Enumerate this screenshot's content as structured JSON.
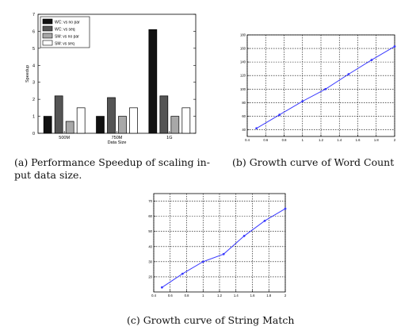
{
  "captions": {
    "a_line1": "(a) Performance Speedup of scaling in-",
    "a_line2": "put data size.",
    "b": "(b) Growth curve of Word Count",
    "c": "(c) Growth curve of String Match"
  },
  "chart_data": [
    {
      "type": "bar",
      "title": "",
      "xlabel": "Data Size",
      "ylabel": "Speedup",
      "categories": [
        "500M",
        "750M",
        "1G"
      ],
      "ylim": [
        0,
        7
      ],
      "yticks": [
        "0",
        "1",
        "2",
        "3",
        "4",
        "5",
        "6",
        "7"
      ],
      "legend_position": "top-left",
      "grid": false,
      "series": [
        {
          "name": "WC: vs no par",
          "color": "#111111",
          "values": [
            1.0,
            1.0,
            6.1
          ]
        },
        {
          "name": "WC: vs seq",
          "color": "#555555",
          "values": [
            2.2,
            2.1,
            2.2
          ]
        },
        {
          "name": "SM: vs no par",
          "color": "#a8a8a8",
          "values": [
            0.7,
            1.0,
            1.0
          ]
        },
        {
          "name": "SM: vs seq",
          "color": "#ffffff",
          "values": [
            1.5,
            1.5,
            1.5
          ]
        }
      ]
    },
    {
      "type": "line",
      "title": "",
      "xlabel": "",
      "ylabel": "",
      "grid": true,
      "line_color": "#3a3aff",
      "xlim": [
        0.4,
        2
      ],
      "ylim": [
        30,
        180
      ],
      "xticks": [
        "0.4",
        "0.6",
        "0.8",
        "1",
        "1.2",
        "1.4",
        "1.6",
        "1.8",
        "2"
      ],
      "yticks": [
        "40",
        "60",
        "80",
        "100",
        "120",
        "140",
        "160",
        "180"
      ],
      "x": [
        0.5,
        0.75,
        1.0,
        1.25,
        1.5,
        1.75,
        2.0
      ],
      "y": [
        42,
        62,
        82,
        100,
        122,
        143,
        163
      ]
    },
    {
      "type": "line",
      "title": "",
      "xlabel": "",
      "ylabel": "",
      "grid": true,
      "line_color": "#3a3aff",
      "xlim": [
        0.4,
        2
      ],
      "ylim": [
        10,
        75
      ],
      "xticks": [
        "0.4",
        "0.6",
        "0.8",
        "1",
        "1.2",
        "1.4",
        "1.6",
        "1.8",
        "2"
      ],
      "yticks": [
        "20",
        "30",
        "40",
        "50",
        "60",
        "70"
      ],
      "x": [
        0.5,
        0.75,
        1.0,
        1.25,
        1.5,
        1.75,
        2.0
      ],
      "y": [
        13,
        22,
        30,
        35,
        47,
        57,
        65
      ]
    }
  ]
}
